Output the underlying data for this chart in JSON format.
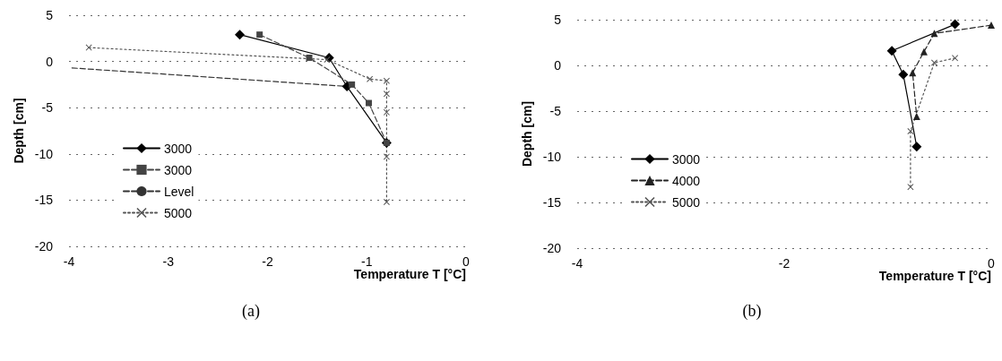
{
  "chart_data": [
    {
      "type": "line",
      "xlabel": "Temperature T [°C]",
      "ylabel": "Depth [cm]",
      "xlim": [
        -4,
        0
      ],
      "xticks": [
        -4,
        -3,
        -2,
        -1,
        0
      ],
      "ylim": [
        -20,
        5
      ],
      "yticks": [
        -20,
        -15,
        -10,
        -5,
        0,
        5
      ],
      "grid": "y",
      "legend": "left",
      "annotations": [
        "(a)"
      ],
      "series": [
        {
          "name": "3000",
          "color": "#000000",
          "marker": "diamond",
          "line_style": "solid",
          "x": [
            -2.28,
            -1.38,
            -1.2,
            -0.8
          ],
          "values": [
            2.9,
            0.4,
            -2.7,
            -8.8
          ]
        },
        {
          "name": "3000",
          "color": "#444444",
          "marker": "square",
          "line_style": "dashed",
          "x": [
            -2.08,
            -1.58,
            -1.15,
            -0.98,
            -0.8
          ],
          "values": [
            2.9,
            0.4,
            -2.5,
            -4.5,
            -8.8
          ]
        },
        {
          "name": "Level",
          "color": "#333333",
          "marker": "none",
          "line_style": "dashed",
          "x": [
            -3.97,
            -1.2
          ],
          "values": [
            -0.7,
            -2.7
          ]
        },
        {
          "name": "5000",
          "color": "#555555",
          "marker": "cross",
          "line_style": "dotted",
          "x": [
            -3.8,
            -1.4,
            -0.97,
            -0.8,
            -0.8,
            -0.8,
            -0.8,
            -0.8
          ],
          "values": [
            1.5,
            0.2,
            -1.9,
            -2.1,
            -3.5,
            -5.5,
            -10.3,
            -15.2
          ]
        }
      ]
    },
    {
      "type": "line",
      "xlabel": "Temperature T [°C]",
      "ylabel": "Depth [cm]",
      "xlim": [
        -4,
        0
      ],
      "xticks": [
        -4,
        -2,
        0
      ],
      "ylim": [
        -20,
        5
      ],
      "yticks": [
        -20,
        -15,
        -10,
        -5,
        0,
        5
      ],
      "grid": "y",
      "legend": "left",
      "annotations": [
        "(b)"
      ],
      "series": [
        {
          "name": "3000",
          "color": "#000000",
          "marker": "diamond",
          "line_style": "solid",
          "x": [
            -0.35,
            -0.96,
            -0.85,
            -0.72
          ],
          "values": [
            4.5,
            1.6,
            -1.0,
            -8.9
          ]
        },
        {
          "name": "4000",
          "color": "#222222",
          "marker": "triangle",
          "line_style": "dashed",
          "x": [
            0,
            -0.55,
            -0.65,
            -0.76,
            -0.72
          ],
          "values": [
            4.4,
            3.5,
            1.5,
            -0.8,
            -5.6
          ]
        },
        {
          "name": "5000",
          "color": "#555555",
          "marker": "cross",
          "line_style": "dotted",
          "x": [
            -0.35,
            -0.55,
            -0.78,
            -0.78
          ],
          "values": [
            0.8,
            0.3,
            -7.2,
            -13.3
          ]
        }
      ]
    }
  ]
}
